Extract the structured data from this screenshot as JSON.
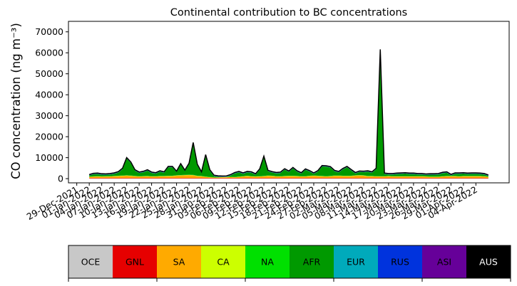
{
  "chart_data": {
    "type": "area",
    "title": "Continental contribution to BC concentrations",
    "ylabel": "CO concentration (ng m⁻³)",
    "xlabel": "",
    "ylim": [
      -2000,
      75000
    ],
    "yticks": [
      0,
      10000,
      20000,
      30000,
      40000,
      50000,
      60000,
      70000
    ],
    "xlim": [
      "2021-12-27",
      "2022-04-12"
    ],
    "xticks": [
      "29-Dec-2021",
      "01-Jan-2022",
      "04-Jan-2022",
      "07-Jan-2022",
      "10-Jan-2022",
      "13-Jan-2022",
      "16-Jan-2022",
      "19-Jan-2022",
      "22-Jan-2022",
      "25-Jan-2022",
      "28-Jan-2022",
      "31-Jan-2022",
      "03-Feb-2022",
      "06-Feb-2022",
      "09-Feb-2022",
      "12-Feb-2022",
      "15-Feb-2022",
      "18-Feb-2022",
      "21-Feb-2022",
      "24-Feb-2022",
      "27-Feb-2022",
      "02-Mar-2022",
      "05-Mar-2022",
      "08-Mar-2022",
      "11-Mar-2022",
      "14-Mar-2022",
      "17-Mar-2022",
      "20-Mar-2022",
      "23-Mar-2022",
      "26-Mar-2022",
      "29-Mar-2022",
      "01-Apr-2022",
      "04-Apr-2022"
    ],
    "x": [
      "2022-01-01",
      "2022-01-02",
      "2022-01-03",
      "2022-01-04",
      "2022-01-05",
      "2022-01-06",
      "2022-01-07",
      "2022-01-08",
      "2022-01-09",
      "2022-01-10",
      "2022-01-11",
      "2022-01-12",
      "2022-01-13",
      "2022-01-14",
      "2022-01-15",
      "2022-01-16",
      "2022-01-17",
      "2022-01-18",
      "2022-01-19",
      "2022-01-20",
      "2022-01-21",
      "2022-01-22",
      "2022-01-23",
      "2022-01-24",
      "2022-01-25",
      "2022-01-26",
      "2022-01-27",
      "2022-01-28",
      "2022-01-29",
      "2022-01-30",
      "2022-01-31",
      "2022-02-01",
      "2022-02-02",
      "2022-02-03",
      "2022-02-04",
      "2022-02-05",
      "2022-02-06",
      "2022-02-07",
      "2022-02-08",
      "2022-02-09",
      "2022-02-10",
      "2022-02-11",
      "2022-02-12",
      "2022-02-13",
      "2022-02-14",
      "2022-02-15",
      "2022-02-16",
      "2022-02-17",
      "2022-02-18",
      "2022-02-19",
      "2022-02-20",
      "2022-02-21",
      "2022-02-22",
      "2022-02-23",
      "2022-02-24",
      "2022-02-25",
      "2022-02-26",
      "2022-02-27",
      "2022-02-28",
      "2022-03-01",
      "2022-03-02",
      "2022-03-03",
      "2022-03-04",
      "2022-03-05",
      "2022-03-06",
      "2022-03-07",
      "2022-03-08",
      "2022-03-09",
      "2022-03-10",
      "2022-03-11",
      "2022-03-12",
      "2022-03-13",
      "2022-03-14",
      "2022-03-15",
      "2022-03-16",
      "2022-03-17",
      "2022-03-18",
      "2022-03-19",
      "2022-03-20",
      "2022-03-21",
      "2022-03-22",
      "2022-03-23",
      "2022-03-24",
      "2022-03-25",
      "2022-03-26",
      "2022-03-27",
      "2022-03-28",
      "2022-03-29",
      "2022-03-30",
      "2022-03-31",
      "2022-04-01",
      "2022-04-02",
      "2022-04-03",
      "2022-04-04",
      "2022-04-05",
      "2022-04-06",
      "2022-04-07"
    ],
    "series": [
      {
        "name": "OCE",
        "color": "#c8c8c8",
        "values": [
          50,
          50,
          50,
          50,
          50,
          50,
          50,
          50,
          50,
          50,
          50,
          50,
          50,
          50,
          50,
          50,
          50,
          50,
          50,
          50,
          50,
          50,
          50,
          50,
          50,
          50,
          50,
          50,
          50,
          50,
          50,
          50,
          50,
          50,
          50,
          50,
          50,
          50,
          50,
          50,
          50,
          50,
          50,
          50,
          50,
          50,
          50,
          50,
          50,
          50,
          50,
          50,
          50,
          50,
          50,
          50,
          50,
          50,
          50,
          50,
          50,
          50,
          50,
          50,
          50,
          50,
          50,
          50,
          50,
          50,
          50,
          50,
          50,
          50,
          50,
          50,
          50,
          50,
          50,
          50,
          50,
          50,
          50,
          50,
          50,
          50,
          50,
          50,
          50,
          50,
          50,
          50,
          50,
          50,
          50,
          50,
          50
        ]
      },
      {
        "name": "GNL",
        "color": "#e60000",
        "values": [
          250,
          250,
          250,
          250,
          250,
          250,
          250,
          250,
          250,
          250,
          250,
          250,
          250,
          250,
          250,
          250,
          250,
          250,
          250,
          250,
          250,
          250,
          250,
          250,
          250,
          250,
          250,
          250,
          250,
          250,
          250,
          250,
          250,
          250,
          250,
          250,
          250,
          250,
          250,
          250,
          250,
          250,
          250,
          250,
          250,
          250,
          250,
          250,
          250,
          250,
          250,
          250,
          250,
          250,
          250,
          250,
          250,
          250,
          250,
          250,
          250,
          250,
          250,
          250,
          250,
          250,
          250,
          250,
          250,
          250,
          250,
          250,
          250,
          250,
          250,
          250,
          250,
          250,
          250,
          250,
          250,
          250,
          250,
          250,
          250,
          250,
          250,
          250,
          250,
          250,
          250,
          250,
          250,
          250,
          250,
          250,
          250
        ]
      },
      {
        "name": "SA",
        "color": "#ffaa00",
        "values": [
          500,
          600,
          700,
          600,
          650,
          700,
          800,
          900,
          1000,
          1100,
          1000,
          800,
          700,
          750,
          800,
          700,
          700,
          800,
          800,
          900,
          900,
          1100,
          1200,
          1300,
          1400,
          1300,
          900,
          800,
          500,
          300,
          200,
          200,
          300,
          350,
          400,
          300,
          500,
          700,
          900,
          700,
          600,
          700,
          800,
          1000,
          900,
          700,
          700,
          800,
          900,
          900,
          800,
          700,
          700,
          900,
          1000,
          900,
          800,
          700,
          800,
          1000,
          1000,
          900,
          900,
          900,
          1100,
          1200,
          1100,
          800,
          800,
          700,
          700,
          700,
          800,
          700,
          700,
          700,
          700,
          700,
          700,
          700,
          700,
          600,
          500,
          500,
          500,
          700,
          800,
          800,
          800,
          700,
          800,
          800,
          800,
          800,
          800,
          700,
          500
        ]
      },
      {
        "name": "CA",
        "color": "#ccff00",
        "values": [
          100,
          100,
          100,
          100,
          100,
          100,
          100,
          100,
          100,
          100,
          100,
          100,
          100,
          100,
          100,
          100,
          100,
          100,
          100,
          100,
          100,
          100,
          100,
          100,
          100,
          100,
          100,
          100,
          100,
          100,
          100,
          100,
          100,
          100,
          100,
          100,
          100,
          100,
          100,
          100,
          100,
          100,
          100,
          100,
          100,
          100,
          100,
          100,
          100,
          100,
          100,
          100,
          100,
          100,
          100,
          100,
          100,
          100,
          100,
          100,
          100,
          100,
          100,
          100,
          100,
          100,
          100,
          100,
          100,
          100,
          100,
          100,
          100,
          100,
          100,
          100,
          100,
          100,
          100,
          100,
          100,
          100,
          100,
          100,
          100,
          100,
          100,
          100,
          100,
          100,
          100,
          100,
          100,
          100,
          100,
          100,
          100
        ]
      },
      {
        "name": "NA",
        "color": "#00e000",
        "values": [
          100,
          100,
          100,
          100,
          100,
          100,
          100,
          100,
          100,
          100,
          100,
          100,
          100,
          100,
          100,
          100,
          100,
          100,
          100,
          100,
          100,
          100,
          100,
          100,
          100,
          100,
          100,
          100,
          100,
          100,
          100,
          100,
          100,
          100,
          100,
          100,
          100,
          100,
          100,
          100,
          100,
          100,
          100,
          100,
          100,
          100,
          100,
          100,
          100,
          100,
          100,
          100,
          100,
          100,
          100,
          100,
          100,
          100,
          100,
          100,
          100,
          100,
          100,
          100,
          100,
          100,
          100,
          100,
          100,
          100,
          100,
          100,
          100,
          100,
          100,
          100,
          100,
          100,
          100,
          100,
          100,
          100,
          100,
          100,
          100,
          100,
          100,
          100,
          100,
          100,
          100,
          100,
          100,
          100,
          100,
          100,
          100
        ]
      },
      {
        "name": "AFR",
        "color": "#009900",
        "values": [
          500,
          1000,
          1000,
          800,
          700,
          800,
          1000,
          1500,
          3000,
          8000,
          6000,
          2500,
          1500,
          1800,
          2500,
          1500,
          1200,
          2000,
          1500,
          4000,
          4000,
          1500,
          5000,
          1800,
          5000,
          15000,
          5000,
          1500,
          10000,
          3000,
          500,
          200,
          0,
          0,
          600,
          1700,
          2000,
          1100,
          1600,
          1600,
          800,
          3000,
          9000,
          2000,
          1500,
          1300,
          1500,
          3000,
          1800,
          3500,
          2000,
          1200,
          3000,
          2000,
          800,
          2000,
          4500,
          4500,
          4000,
          2000,
          1500,
          3000,
          4000,
          2500,
          900,
          1500,
          1500,
          2000,
          1500,
          3300,
          60000,
          1000,
          700,
          800,
          1000,
          1100,
          1200,
          1000,
          1000,
          800,
          800,
          700,
          900,
          900,
          1000,
          1400,
          1500,
          300,
          1000,
          1100,
          1100,
          900,
          1000,
          1000,
          900,
          800,
          300
        ]
      },
      {
        "name": "EUR",
        "color": "#00aabb",
        "values": [
          100,
          100,
          100,
          100,
          100,
          100,
          100,
          100,
          100,
          100,
          100,
          100,
          100,
          100,
          100,
          100,
          100,
          100,
          100,
          100,
          100,
          100,
          100,
          100,
          100,
          100,
          100,
          100,
          100,
          100,
          100,
          100,
          100,
          100,
          100,
          100,
          100,
          100,
          100,
          100,
          100,
          100,
          100,
          100,
          100,
          100,
          100,
          100,
          100,
          100,
          100,
          100,
          100,
          100,
          100,
          100,
          100,
          100,
          100,
          100,
          100,
          100,
          100,
          100,
          100,
          100,
          100,
          100,
          100,
          100,
          100,
          100,
          100,
          100,
          100,
          100,
          100,
          100,
          100,
          100,
          100,
          100,
          100,
          100,
          100,
          100,
          100,
          100,
          100,
          100,
          100,
          100,
          100,
          100,
          100,
          100,
          100
        ]
      },
      {
        "name": "RUS",
        "color": "#0033dd",
        "values": [
          100,
          100,
          100,
          100,
          100,
          100,
          100,
          100,
          100,
          100,
          100,
          100,
          100,
          100,
          100,
          100,
          100,
          100,
          100,
          100,
          100,
          100,
          100,
          100,
          100,
          100,
          100,
          100,
          100,
          100,
          100,
          100,
          100,
          100,
          100,
          100,
          100,
          100,
          100,
          100,
          100,
          100,
          100,
          100,
          100,
          100,
          100,
          100,
          100,
          100,
          100,
          100,
          100,
          100,
          100,
          100,
          100,
          100,
          100,
          100,
          100,
          100,
          100,
          100,
          100,
          100,
          100,
          100,
          100,
          100,
          100,
          100,
          100,
          100,
          100,
          100,
          100,
          100,
          100,
          100,
          100,
          100,
          100,
          100,
          100,
          100,
          100,
          100,
          100,
          100,
          100,
          100,
          100,
          100,
          100,
          100,
          100
        ]
      },
      {
        "name": "ASI",
        "color": "#660099",
        "values": [
          200,
          200,
          200,
          200,
          200,
          200,
          200,
          200,
          200,
          200,
          200,
          200,
          200,
          200,
          200,
          200,
          200,
          200,
          200,
          200,
          200,
          200,
          200,
          200,
          200,
          200,
          200,
          200,
          200,
          200,
          200,
          200,
          200,
          200,
          200,
          200,
          200,
          200,
          200,
          200,
          200,
          200,
          200,
          200,
          200,
          200,
          200,
          200,
          200,
          200,
          200,
          200,
          200,
          200,
          200,
          200,
          200,
          200,
          200,
          200,
          200,
          200,
          200,
          200,
          200,
          200,
          200,
          200,
          200,
          200,
          200,
          200,
          200,
          200,
          200,
          200,
          200,
          200,
          200,
          200,
          200,
          200,
          200,
          200,
          200,
          200,
          200,
          200,
          200,
          200,
          200,
          200,
          200,
          200,
          200,
          200,
          200
        ]
      },
      {
        "name": "AUS",
        "color": "#000000",
        "values": [
          50,
          50,
          50,
          50,
          50,
          50,
          50,
          50,
          50,
          50,
          50,
          50,
          50,
          50,
          50,
          50,
          50,
          50,
          50,
          50,
          50,
          50,
          50,
          50,
          50,
          50,
          50,
          50,
          50,
          50,
          50,
          50,
          50,
          50,
          50,
          50,
          50,
          50,
          50,
          50,
          50,
          50,
          50,
          50,
          50,
          50,
          50,
          50,
          50,
          50,
          50,
          50,
          50,
          50,
          50,
          50,
          50,
          50,
          50,
          50,
          50,
          50,
          50,
          50,
          50,
          50,
          50,
          50,
          50,
          50,
          50,
          50,
          50,
          50,
          50,
          50,
          50,
          50,
          50,
          50,
          50,
          50,
          50,
          50,
          50,
          50,
          50,
          50,
          50,
          50,
          50,
          50,
          50,
          50,
          50,
          50,
          50
        ]
      }
    ],
    "legend_position": "bottom",
    "legend_text_colors": [
      "#000000",
      "#000000",
      "#000000",
      "#000000",
      "#000000",
      "#000000",
      "#000000",
      "#000000",
      "#000000",
      "#ffffff"
    ],
    "grid": false
  }
}
